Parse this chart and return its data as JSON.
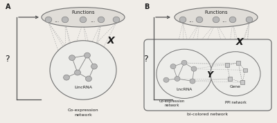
{
  "bg_color": "#f0ede8",
  "node_color": "#b8b8b8",
  "node_edge": "#808080",
  "square_color": "#c8c8c8",
  "ellipse_fill": "#e0ddd8",
  "ellipse_edge": "#707070",
  "circle_fill": "#ededea",
  "rounded_rect_fill": "#ededea",
  "rounded_rect_edge": "#707070",
  "dashed_color": "#aaaaaa",
  "arrow_color": "#505050",
  "text_color": "#1a1a1a",
  "label_A": "A",
  "label_B": "B",
  "question_mark": "?",
  "functions_label": "Functions",
  "x_label": "X",
  "y_label": "Y",
  "lincrna_label_A": "LincRNA",
  "coexp_label_A1": "Co-expression",
  "coexp_label_A2": "network",
  "lincrna_label_B": "LncRNA",
  "coexp_label_B1": "Co-expression",
  "coexp_label_B2": "network",
  "ppi_label": "PPI network",
  "gene_label": "Gene",
  "bicolored_label": "bi-colored network"
}
